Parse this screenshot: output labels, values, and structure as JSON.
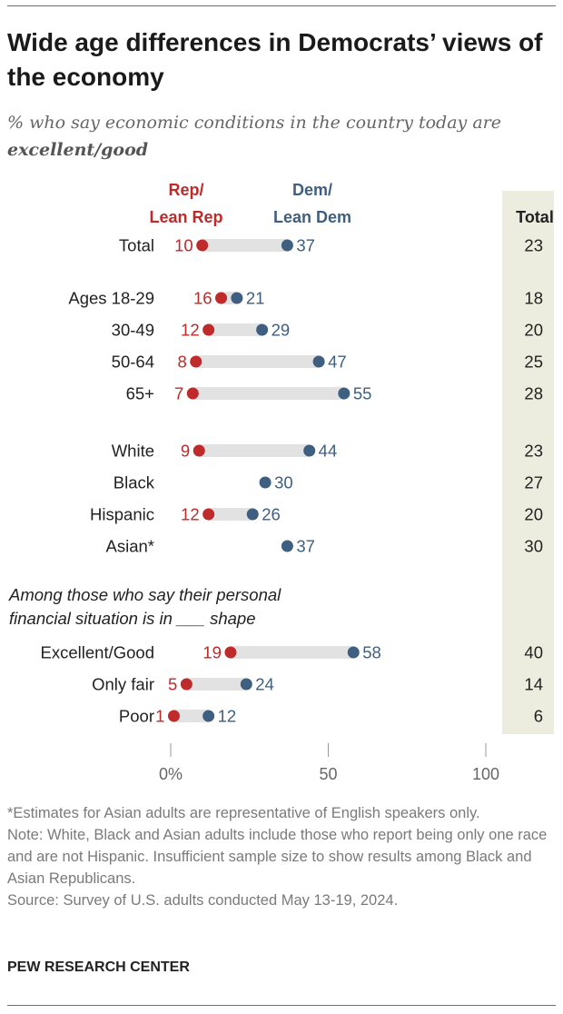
{
  "title": "Wide age differences in Democrats’ views of the economy",
  "subtitle_prefix": "% who say economic conditions in the country today are",
  "subtitle_emphasis": "excellent/good",
  "subgroup_heading": "Among those who say their personal financial situation is in ___ shape",
  "notes": {
    "asterisk": "*Estimates for Asian adults are representative of English speakers only.",
    "note": "Note: White, Black and Asian adults include those who report being only one race and are not Hispanic. Insufficient sample size to show results among Black and Asian Republicans.",
    "source": "Source: Survey of U.S. adults conducted May 13-19, 2024."
  },
  "org": "PEW RESEARCH CENTER",
  "colors": {
    "rep": "#bf2a2a",
    "dem": "#3f5f80",
    "bar": "#e2e2e2",
    "total_bg": "#ededdf"
  },
  "chart_data": {
    "type": "dot",
    "xlim": [
      0,
      100
    ],
    "xticks": [
      "0%",
      "50",
      "100"
    ],
    "legend": {
      "rep": [
        "Rep/",
        "Lean Rep"
      ],
      "dem": [
        "Dem/",
        "Lean Dem"
      ],
      "total": "Total"
    },
    "rows": [
      {
        "label": "Total",
        "rep": 10,
        "dem": 37,
        "total": 23
      },
      {
        "label": "Ages 18-29",
        "rep": 16,
        "dem": 21,
        "total": 18
      },
      {
        "label": "30-49",
        "rep": 12,
        "dem": 29,
        "total": 20
      },
      {
        "label": "50-64",
        "rep": 8,
        "dem": 47,
        "total": 25
      },
      {
        "label": "65+",
        "rep": 7,
        "dem": 55,
        "total": 28
      },
      {
        "label": "White",
        "rep": 9,
        "dem": 44,
        "total": 23
      },
      {
        "label": "Black",
        "rep": null,
        "dem": 30,
        "total": 27
      },
      {
        "label": "Hispanic",
        "rep": 12,
        "dem": 26,
        "total": 20
      },
      {
        "label": "Asian*",
        "rep": null,
        "dem": 37,
        "total": 30
      },
      {
        "label": "Excellent/Good",
        "rep": 19,
        "dem": 58,
        "total": 40
      },
      {
        "label": "Only fair",
        "rep": 5,
        "dem": 24,
        "total": 14
      },
      {
        "label": "Poor",
        "rep": 1,
        "dem": 12,
        "total": 6
      }
    ]
  }
}
